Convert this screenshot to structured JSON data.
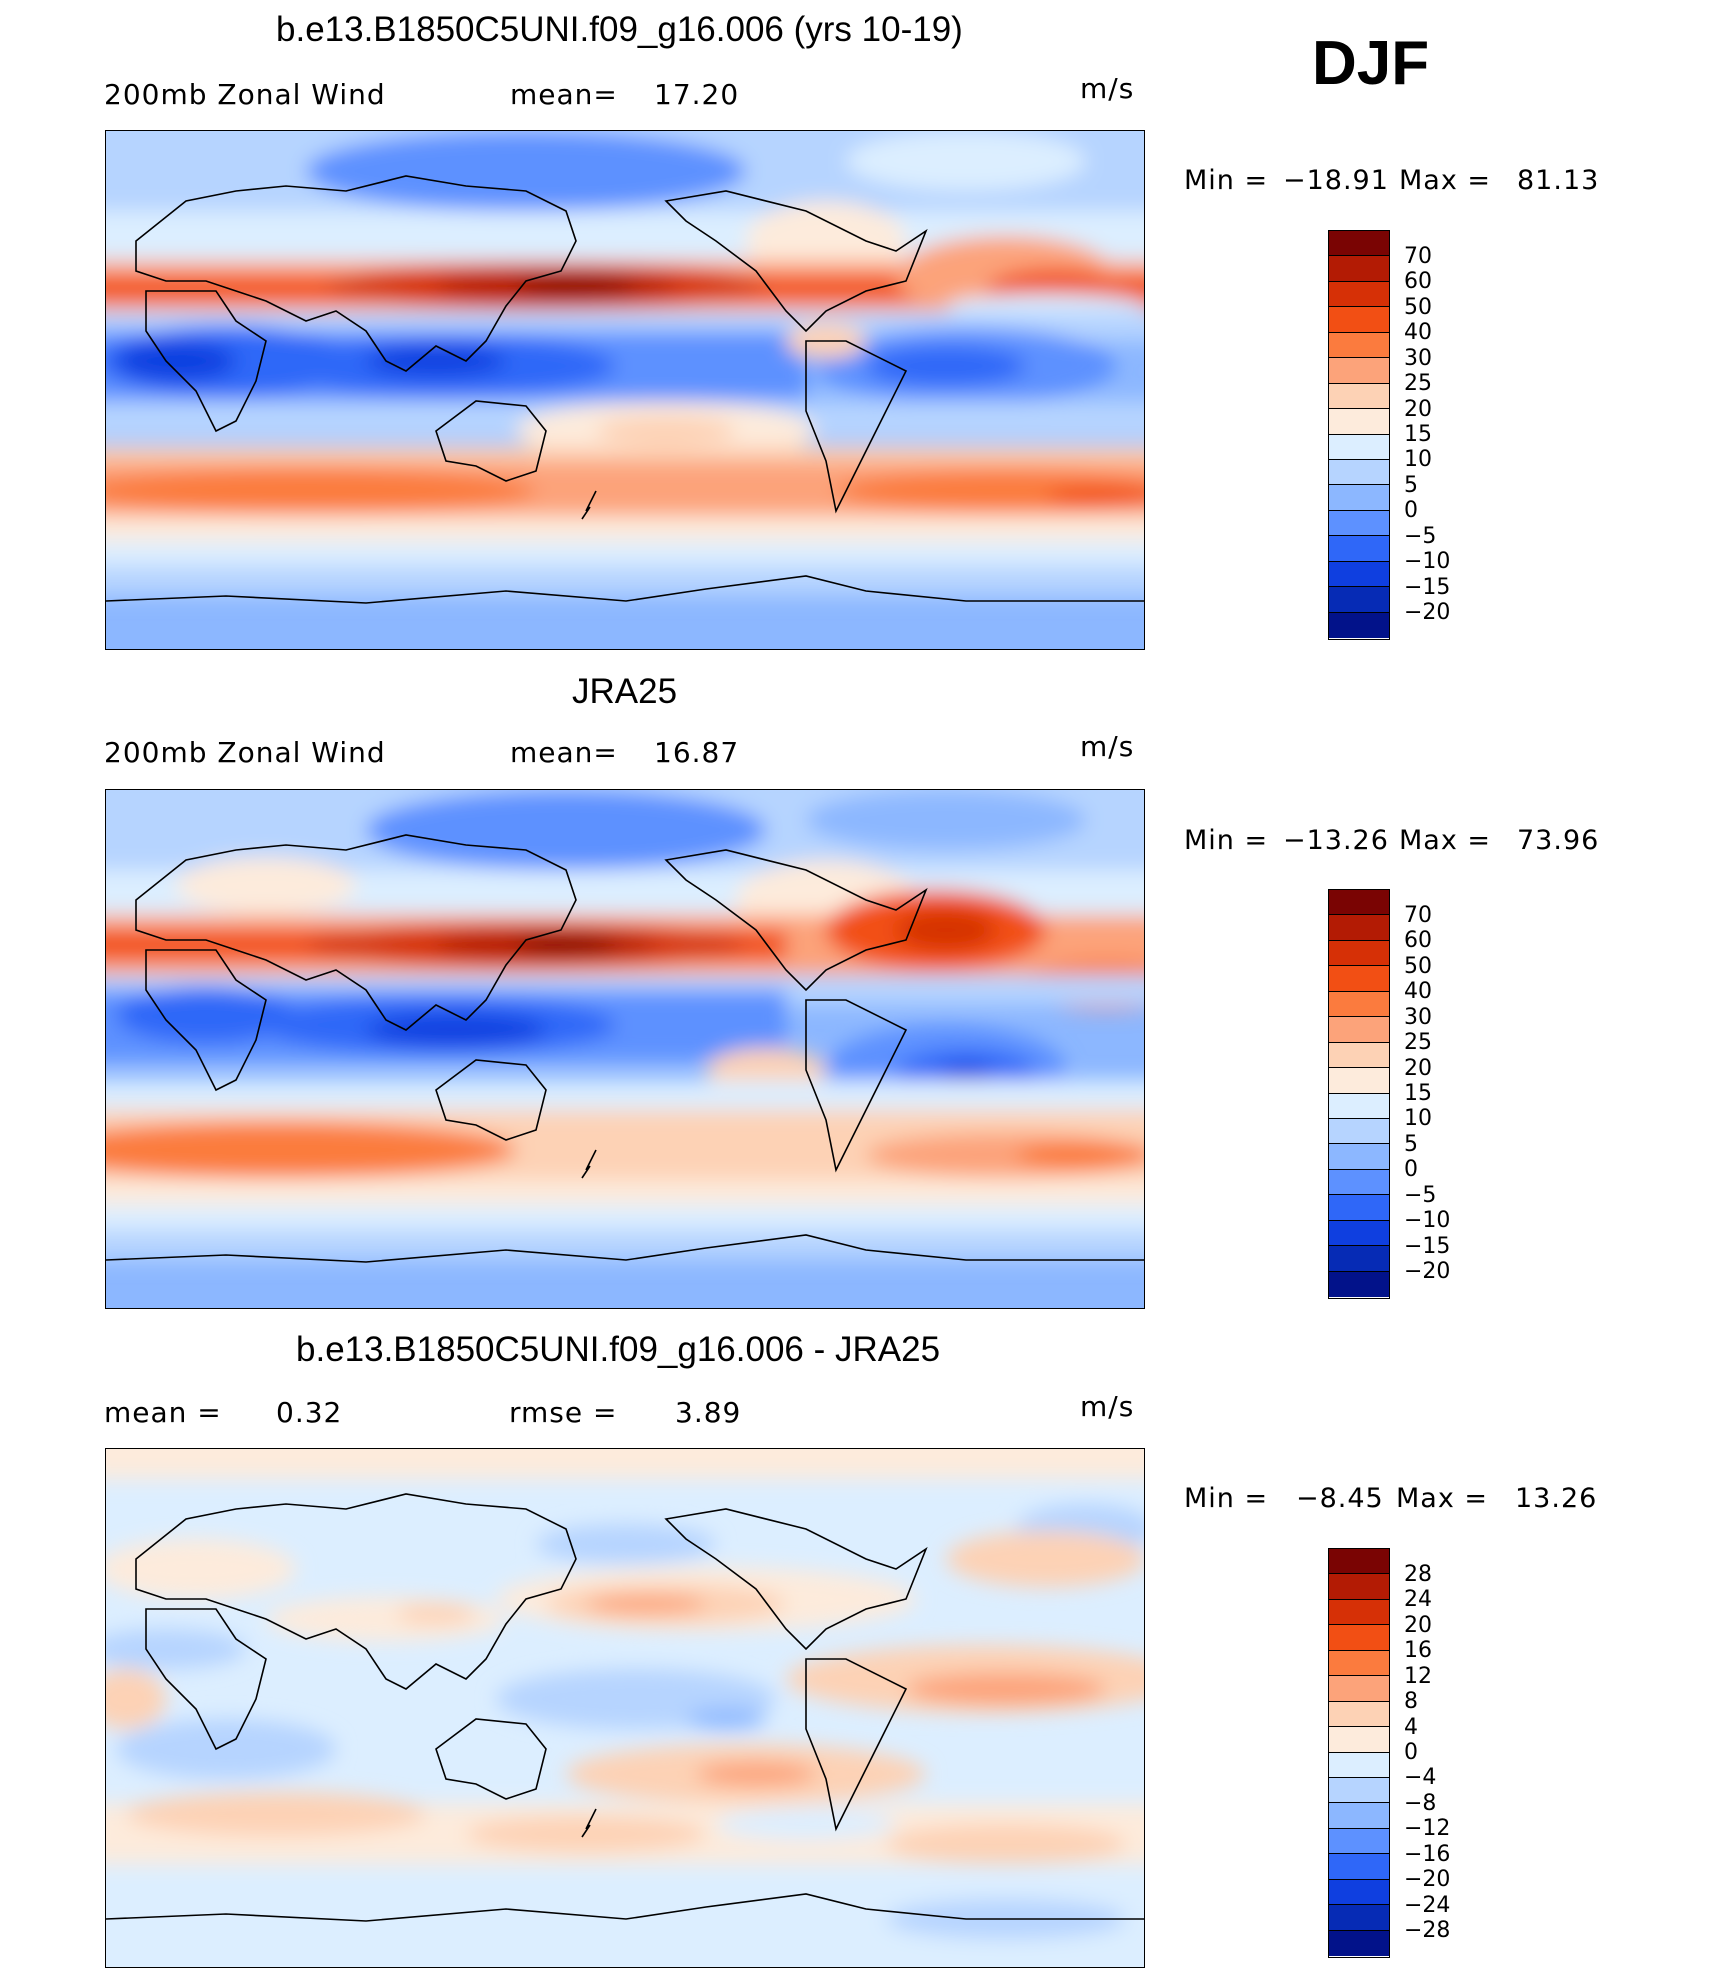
{
  "season": "DJF",
  "panels": [
    {
      "title": "b.e13.B1850C5UNI.f09_g16.006 (yrs 10-19)",
      "left_label": "200mb Zonal Wind",
      "stat_label": "mean=",
      "stat_value": "17.20",
      "units": "m/s",
      "min_label": "Min =",
      "min_value": "−18.91",
      "max_label": "Max =",
      "max_value": "81.13",
      "colorbar_labels": [
        "70",
        "60",
        "50",
        "40",
        "30",
        "25",
        "20",
        "15",
        "10",
        "5",
        "0",
        "−5",
        "−10",
        "−15",
        "−20"
      ],
      "colorbar_colors": [
        "#7a0403",
        "#b31b04",
        "#d63006",
        "#f24f14",
        "#fb7b3e",
        "#fca37a",
        "#fdd2b5",
        "#fdebdc",
        "#dceeff",
        "#b6d4ff",
        "#8cb7ff",
        "#5d91ff",
        "#2f67f8",
        "#0f3fe0",
        "#062bb5",
        "#02128a"
      ]
    },
    {
      "title": "JRA25",
      "left_label": "200mb Zonal Wind",
      "stat_label": "mean=",
      "stat_value": "16.87",
      "units": "m/s",
      "min_label": "Min =",
      "min_value": "−13.26",
      "max_label": "Max =",
      "max_value": "73.96",
      "colorbar_labels": [
        "70",
        "60",
        "50",
        "40",
        "30",
        "25",
        "20",
        "15",
        "10",
        "5",
        "0",
        "−5",
        "−10",
        "−15",
        "−20"
      ],
      "colorbar_colors": [
        "#7a0403",
        "#b31b04",
        "#d63006",
        "#f24f14",
        "#fb7b3e",
        "#fca37a",
        "#fdd2b5",
        "#fdebdc",
        "#dceeff",
        "#b6d4ff",
        "#8cb7ff",
        "#5d91ff",
        "#2f67f8",
        "#0f3fe0",
        "#062bb5",
        "#02128a"
      ]
    },
    {
      "title": "b.e13.B1850C5UNI.f09_g16.006 - JRA25",
      "left_label": "mean =",
      "left_value": "0.32",
      "stat_label": "rmse =",
      "stat_value": "3.89",
      "units": "m/s",
      "min_label": "Min =",
      "min_value": "−8.45",
      "max_label": "Max =",
      "max_value": "13.26",
      "colorbar_labels": [
        "28",
        "24",
        "20",
        "16",
        "12",
        "8",
        "4",
        "0",
        "−4",
        "−8",
        "−12",
        "−16",
        "−20",
        "−24",
        "−28"
      ],
      "colorbar_colors": [
        "#7a0403",
        "#b31b04",
        "#d63006",
        "#f24f14",
        "#fb7b3e",
        "#fca37a",
        "#fdd2b5",
        "#fdebdc",
        "#dceeff",
        "#b6d4ff",
        "#8cb7ff",
        "#5d91ff",
        "#2f67f8",
        "#0f3fe0",
        "#062bb5",
        "#02128a"
      ]
    }
  ]
}
